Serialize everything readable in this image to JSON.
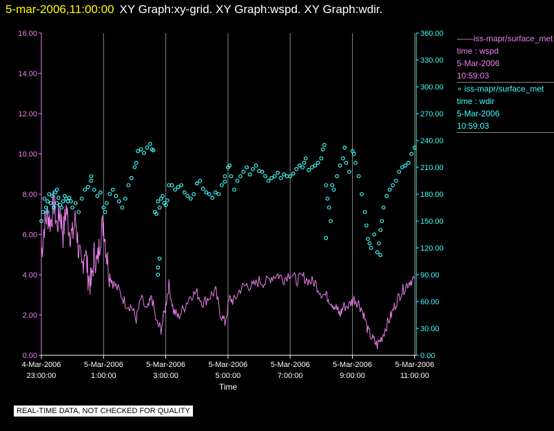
{
  "header": {
    "timestamp": "5-mar-2006,11:00:00",
    "graph_titles": "XY Graph:xy-grid.  XY Graph:wspd.  XY Graph:wdir."
  },
  "legend": [
    {
      "marker": "——",
      "name": "iss-mapr/surface_met",
      "line2": "time : wspd",
      "line3": "5-Mar-2006",
      "line4": "10:59:03",
      "color": "#ee82ee"
    },
    {
      "marker": "∘",
      "name": "iss-mapr/surface_met",
      "line2": "time : wdir",
      "line3": "5-Mar-2006",
      "line4": "10:59:03",
      "color": "#40ffff"
    }
  ],
  "disclaimer": "REAL-TIME DATA, NOT CHECKED FOR QUALITY",
  "colors": {
    "background": "#000000",
    "wspd": "#ee82ee",
    "wdir": "#40ffff",
    "grid": "#888888",
    "header_time": "#ffff00"
  },
  "chart_data": {
    "type": "line",
    "xlabel": "Time",
    "x_range_hours": [
      -1.0,
      11.05
    ],
    "x_ticks": [
      {
        "hour": -1,
        "line1": "4-Mar-2006",
        "line2": "23:00:00"
      },
      {
        "hour": 1,
        "line1": "5-Mar-2006",
        "line2": "1:00:00"
      },
      {
        "hour": 3,
        "line1": "5-Mar-2006",
        "line2": "3:00:00"
      },
      {
        "hour": 5,
        "line1": "5-Mar-2006",
        "line2": "5:00:00"
      },
      {
        "hour": 7,
        "line1": "5-Mar-2006",
        "line2": "7:00:00"
      },
      {
        "hour": 9,
        "line1": "5-Mar-2006",
        "line2": "9:00:00"
      },
      {
        "hour": 11,
        "line1": "5-Mar-2006",
        "line2": "11:00:00"
      }
    ],
    "grid_hours": [
      1,
      3,
      5,
      7,
      9,
      11
    ],
    "left_axis": {
      "name": "wspd",
      "ylim": [
        0,
        16
      ],
      "ticks": [
        "0.00",
        "2.00",
        "4.00",
        "6.00",
        "8.00",
        "10.00",
        "12.00",
        "14.00",
        "16.00"
      ]
    },
    "right_axis": {
      "name": "wdir",
      "ylim": [
        0,
        360
      ],
      "ticks": [
        "0.00",
        "30.00",
        "60.00",
        "90.00",
        "120.00",
        "150.00",
        "180.00",
        "210.00",
        "240.00",
        "270.00",
        "300.00",
        "330.00",
        "360.00"
      ]
    },
    "series": [
      {
        "name": "wspd",
        "axis": "left",
        "style": "line",
        "points": [
          [
            -1.0,
            5.0
          ],
          [
            -0.9,
            6.5
          ],
          [
            -0.8,
            7.0
          ],
          [
            -0.7,
            6.6
          ],
          [
            -0.6,
            7.6
          ],
          [
            -0.5,
            6.4
          ],
          [
            -0.4,
            7.2
          ],
          [
            -0.3,
            6.0
          ],
          [
            -0.2,
            7.3
          ],
          [
            -0.1,
            6.2
          ],
          [
            0.0,
            5.9
          ],
          [
            0.1,
            6.8
          ],
          [
            0.2,
            5.2
          ],
          [
            0.3,
            4.2
          ],
          [
            0.4,
            5.4
          ],
          [
            0.5,
            4.0
          ],
          [
            0.6,
            3.5
          ],
          [
            0.7,
            5.0
          ],
          [
            0.8,
            4.5
          ],
          [
            0.9,
            6.0
          ],
          [
            1.0,
            6.6
          ],
          [
            1.1,
            5.0
          ],
          [
            1.2,
            4.0
          ],
          [
            1.3,
            3.6
          ],
          [
            1.5,
            3.2
          ],
          [
            1.7,
            2.6
          ],
          [
            1.9,
            2.4
          ],
          [
            2.05,
            1.8
          ],
          [
            2.2,
            2.8
          ],
          [
            2.4,
            2.2
          ],
          [
            2.55,
            2.9
          ],
          [
            2.7,
            1.6
          ],
          [
            2.85,
            1.3
          ],
          [
            3.0,
            2.5
          ],
          [
            3.1,
            3.5
          ],
          [
            3.25,
            2.2
          ],
          [
            3.4,
            1.9
          ],
          [
            3.6,
            2.4
          ],
          [
            3.8,
            3.0
          ],
          [
            4.0,
            3.1
          ],
          [
            4.2,
            2.6
          ],
          [
            4.4,
            2.9
          ],
          [
            4.6,
            3.2
          ],
          [
            4.75,
            2.1
          ],
          [
            4.9,
            1.6
          ],
          [
            5.05,
            2.8
          ],
          [
            5.2,
            2.7
          ],
          [
            5.4,
            3.3
          ],
          [
            5.6,
            3.5
          ],
          [
            5.8,
            3.4
          ],
          [
            6.0,
            3.7
          ],
          [
            6.2,
            3.6
          ],
          [
            6.4,
            3.9
          ],
          [
            6.6,
            4.0
          ],
          [
            6.8,
            3.8
          ],
          [
            7.0,
            4.1
          ],
          [
            7.2,
            3.7
          ],
          [
            7.4,
            3.9
          ],
          [
            7.6,
            3.7
          ],
          [
            7.8,
            3.6
          ],
          [
            8.0,
            3.1
          ],
          [
            8.2,
            2.9
          ],
          [
            8.35,
            2.6
          ],
          [
            8.5,
            2.3
          ],
          [
            8.6,
            2.0
          ],
          [
            8.7,
            2.4
          ],
          [
            8.9,
            2.5
          ],
          [
            9.05,
            2.8
          ],
          [
            9.2,
            2.6
          ],
          [
            9.35,
            2.1
          ],
          [
            9.5,
            1.2
          ],
          [
            9.65,
            0.8
          ],
          [
            9.8,
            0.5
          ],
          [
            9.95,
            0.9
          ],
          [
            10.1,
            1.5
          ],
          [
            10.25,
            2.0
          ],
          [
            10.4,
            2.6
          ],
          [
            10.55,
            3.1
          ],
          [
            10.7,
            3.4
          ],
          [
            10.85,
            3.7
          ],
          [
            11.0,
            3.8
          ]
        ]
      },
      {
        "name": "wdir",
        "axis": "right",
        "style": "scatter",
        "points": [
          [
            -1.0,
            150
          ],
          [
            -0.95,
            160
          ],
          [
            -0.9,
            175
          ],
          [
            -0.85,
            165
          ],
          [
            -0.8,
            172
          ],
          [
            -0.75,
            180
          ],
          [
            -0.7,
            170
          ],
          [
            -0.65,
            178
          ],
          [
            -0.6,
            165
          ],
          [
            -0.55,
            182
          ],
          [
            -0.5,
            170
          ],
          [
            -0.45,
            176
          ],
          [
            -0.4,
            168
          ],
          [
            -0.35,
            165
          ],
          [
            -0.3,
            172
          ],
          [
            -0.25,
            178
          ],
          [
            -0.2,
            175
          ],
          [
            -0.15,
            172
          ],
          [
            -0.1,
            176
          ],
          [
            -0.05,
            172
          ],
          [
            0.0,
            165
          ],
          [
            0.1,
            170
          ],
          [
            0.2,
            160
          ],
          [
            0.3,
            175
          ],
          [
            0.4,
            185
          ],
          [
            0.5,
            188
          ],
          [
            0.6,
            195
          ],
          [
            0.7,
            185
          ],
          [
            0.8,
            178
          ],
          [
            0.9,
            182
          ],
          [
            1.0,
            165
          ],
          [
            1.05,
            160
          ],
          [
            1.1,
            170
          ],
          [
            1.2,
            180
          ],
          [
            1.3,
            185
          ],
          [
            1.4,
            178
          ],
          [
            1.5,
            172
          ],
          [
            1.6,
            165
          ],
          [
            1.7,
            175
          ],
          [
            1.8,
            190
          ],
          [
            1.9,
            198
          ],
          [
            2.0,
            210
          ],
          [
            2.05,
            215
          ],
          [
            2.1,
            228
          ],
          [
            2.2,
            230
          ],
          [
            2.3,
            226
          ],
          [
            2.4,
            232
          ],
          [
            2.5,
            236
          ],
          [
            2.55,
            230
          ],
          [
            2.6,
            229
          ],
          [
            2.65,
            160
          ],
          [
            2.7,
            158
          ],
          [
            2.75,
            172
          ],
          [
            2.8,
            165
          ],
          [
            2.85,
            175
          ],
          [
            2.9,
            178
          ],
          [
            2.95,
            170
          ],
          [
            3.0,
            168
          ],
          [
            3.05,
            173
          ],
          [
            3.1,
            190
          ],
          [
            2.75,
            98
          ],
          [
            2.8,
            108
          ],
          [
            2.75,
            90
          ],
          [
            3.2,
            190
          ],
          [
            3.3,
            185
          ],
          [
            3.4,
            188
          ],
          [
            3.5,
            190
          ],
          [
            3.6,
            182
          ],
          [
            3.7,
            178
          ],
          [
            3.8,
            175
          ],
          [
            3.9,
            180
          ],
          [
            4.0,
            192
          ],
          [
            4.1,
            195
          ],
          [
            4.2,
            186
          ],
          [
            4.3,
            182
          ],
          [
            4.4,
            180
          ],
          [
            4.5,
            176
          ],
          [
            4.6,
            182
          ],
          [
            4.7,
            180
          ],
          [
            4.8,
            190
          ],
          [
            4.9,
            200
          ],
          [
            5.0,
            210
          ],
          [
            5.05,
            212
          ],
          [
            5.1,
            200
          ],
          [
            5.2,
            185
          ],
          [
            5.3,
            195
          ],
          [
            5.4,
            200
          ],
          [
            5.5,
            205
          ],
          [
            5.6,
            210
          ],
          [
            5.7,
            202
          ],
          [
            5.8,
            208
          ],
          [
            5.9,
            212
          ],
          [
            6.0,
            206
          ],
          [
            6.1,
            205
          ],
          [
            6.2,
            200
          ],
          [
            6.3,
            195
          ],
          [
            6.4,
            198
          ],
          [
            6.5,
            200
          ],
          [
            6.6,
            204
          ],
          [
            6.7,
            198
          ],
          [
            6.8,
            202
          ],
          [
            6.9,
            200
          ],
          [
            7.0,
            200
          ],
          [
            7.1,
            203
          ],
          [
            7.2,
            208
          ],
          [
            7.3,
            212
          ],
          [
            7.4,
            210
          ],
          [
            7.45,
            215
          ],
          [
            7.5,
            220
          ],
          [
            7.6,
            207
          ],
          [
            7.7,
            210
          ],
          [
            7.8,
            212
          ],
          [
            7.9,
            215
          ],
          [
            8.0,
            220
          ],
          [
            8.05,
            230
          ],
          [
            8.1,
            235
          ],
          [
            8.15,
            190
          ],
          [
            8.2,
            175
          ],
          [
            8.25,
            165
          ],
          [
            8.3,
            150
          ],
          [
            8.35,
            190
          ],
          [
            8.4,
            185
          ],
          [
            8.5,
            200
          ],
          [
            8.6,
            212
          ],
          [
            8.7,
            220
          ],
          [
            8.75,
            232
          ],
          [
            8.8,
            215
          ],
          [
            8.9,
            205
          ],
          [
            9.0,
            228
          ],
          [
            9.05,
            225
          ],
          [
            9.1,
            215
          ],
          [
            9.2,
            200
          ],
          [
            9.3,
            180
          ],
          [
            9.4,
            160
          ],
          [
            9.45,
            145
          ],
          [
            9.5,
            130
          ],
          [
            9.55,
            125
          ],
          [
            9.6,
            120
          ],
          [
            9.7,
            135
          ],
          [
            9.8,
            115
          ],
          [
            9.85,
            125
          ],
          [
            9.9,
            140
          ],
          [
            9.95,
            150
          ],
          [
            10.0,
            165
          ],
          [
            10.1,
            178
          ],
          [
            10.2,
            185
          ],
          [
            10.3,
            190
          ],
          [
            10.4,
            195
          ],
          [
            10.5,
            205
          ],
          [
            10.6,
            210
          ],
          [
            10.7,
            212
          ],
          [
            10.8,
            215
          ],
          [
            10.9,
            225
          ],
          [
            11.0,
            232
          ],
          [
            8.15,
            131
          ],
          [
            9.9,
            112
          ],
          [
            -0.8,
            160
          ],
          [
            -0.5,
            185
          ],
          [
            0.6,
            200
          ],
          [
            4.9,
            194
          ]
        ]
      }
    ]
  }
}
